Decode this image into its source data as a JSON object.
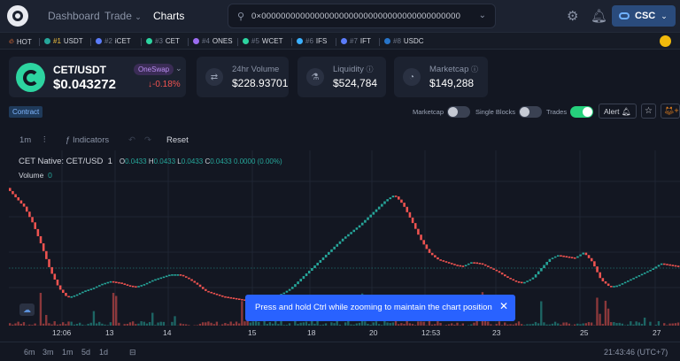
{
  "nav": {
    "dashboard": "Dashboard",
    "trade": "Trade",
    "charts": "Charts"
  },
  "search": {
    "value": "0×00000000000000000000000000000000000000000"
  },
  "network": {
    "label": "CSC"
  },
  "ticker": {
    "hot": "HOT",
    "items": [
      {
        "rank": "#1",
        "symbol": "USDT",
        "color": "#26a69a"
      },
      {
        "rank": "#2",
        "symbol": "iCET",
        "color": "#5b7cfa"
      },
      {
        "rank": "#3",
        "symbol": "CET",
        "color": "#2dd4a0"
      },
      {
        "rank": "#4",
        "symbol": "ONES",
        "color": "#9b6cf0"
      },
      {
        "rank": "#5",
        "symbol": "WCET",
        "color": "#2dd4a0"
      },
      {
        "rank": "#6",
        "symbol": "IFS",
        "color": "#3bb0ff"
      },
      {
        "rank": "#7",
        "symbol": "IFT",
        "color": "#5b7cfa"
      },
      {
        "rank": "#8",
        "symbol": "USDC",
        "color": "#2775ca"
      }
    ]
  },
  "pair": {
    "name": "CET/USDT",
    "badge": "OneSwap",
    "price": "$0.043272",
    "change": "-0.18%"
  },
  "stats": {
    "volume": {
      "label": "24hr Volume",
      "value": "$228.93701"
    },
    "liquidity": {
      "label": "Liquidity",
      "value": "$524,784"
    },
    "marketcap": {
      "label": "Marketcap",
      "value": "$149,288"
    }
  },
  "controls": {
    "contract": "Contract",
    "marketcap": "Marketcap",
    "single_blocks": "Single Blocks",
    "trades": "Trades",
    "alert": "Alert",
    "toggles": {
      "marketcap": false,
      "single_blocks": false,
      "trades": true
    }
  },
  "toolbar": {
    "interval": "1m",
    "indicators": "Indicators",
    "reset": "Reset"
  },
  "legend": {
    "symbol": "CET Native: CET/USD",
    "interval": "1",
    "o": "0.0433",
    "h": "0.0433",
    "l": "0.0433",
    "c": "0.0433",
    "change": "0.0000 (0.00%)",
    "volume_label": "Volume",
    "volume_value": "0"
  },
  "tooltip": {
    "text": "Press and hold Ctrl while zooming to maintain the chart position"
  },
  "bottom": {
    "ranges": [
      "6m",
      "3m",
      "1m",
      "5d",
      "1d"
    ],
    "clock": "21:43:46 (UTC+7)"
  },
  "colors": {
    "up": "#26a69a",
    "down": "#ef5350",
    "accent": "#2962ff"
  },
  "chart_data": {
    "type": "candlestick",
    "x_ticks": [
      "12:06",
      "13",
      "14",
      "15",
      "18",
      "19",
      "20",
      "12:53",
      "23",
      "25",
      "27"
    ],
    "close_trend": [
      0.92,
      0.85,
      0.78,
      0.66,
      0.5,
      0.32,
      0.19,
      0.12,
      0.14,
      0.17,
      0.19,
      0.22,
      0.24,
      0.23,
      0.21,
      0.2,
      0.22,
      0.25,
      0.27,
      0.29,
      0.29,
      0.26,
      0.22,
      0.17,
      0.15,
      0.13,
      0.12,
      0.11,
      0.1,
      0.11,
      0.12,
      0.13,
      0.15,
      0.19,
      0.25,
      0.31,
      0.37,
      0.43,
      0.49,
      0.55,
      0.6,
      0.65,
      0.71,
      0.77,
      0.83,
      0.87,
      0.8,
      0.68,
      0.55,
      0.45,
      0.4,
      0.38,
      0.36,
      0.35,
      0.38,
      0.37,
      0.34,
      0.31,
      0.27,
      0.24,
      0.23,
      0.26,
      0.33,
      0.4,
      0.43,
      0.42,
      0.41,
      0.45,
      0.38,
      0.25,
      0.2,
      0.21,
      0.24,
      0.27,
      0.3,
      0.33,
      0.37,
      0.36,
      0.35
    ]
  }
}
